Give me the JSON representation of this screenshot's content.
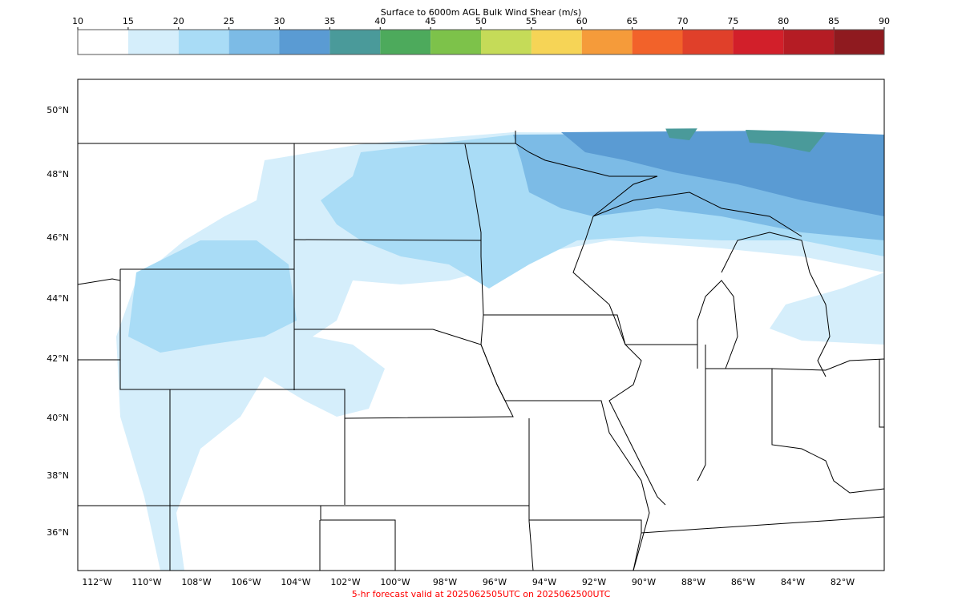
{
  "colorbar": {
    "title": "Surface to 6000m AGL Bulk Wind Shear (m/s)",
    "ticks": [
      10,
      15,
      20,
      25,
      30,
      35,
      40,
      45,
      50,
      55,
      60,
      65,
      70,
      75,
      80,
      85,
      90
    ],
    "colors": [
      "#ffffff",
      "#d5eefb",
      "#a9dcf6",
      "#7cbbe6",
      "#5a9bd3",
      "#4a9a9a",
      "#4daa5c",
      "#7dc24a",
      "#c5db58",
      "#f6d456",
      "#f59b3a",
      "#f2622a",
      "#e0402a",
      "#d21f2a",
      "#b51c24",
      "#8f1a1f"
    ]
  },
  "map": {
    "lat_labels": [
      "50°N",
      "48°N",
      "46°N",
      "44°N",
      "42°N",
      "40°N",
      "38°N",
      "36°N"
    ],
    "lon_labels": [
      "112°W",
      "110°W",
      "108°W",
      "106°W",
      "104°W",
      "102°W",
      "100°W",
      "98°W",
      "96°W",
      "94°W",
      "92°W",
      "90°W",
      "88°W",
      "86°W",
      "84°W",
      "82°W"
    ]
  },
  "footer": "5-hr forecast valid at 2025062505UTC on 2025062500UTC"
}
